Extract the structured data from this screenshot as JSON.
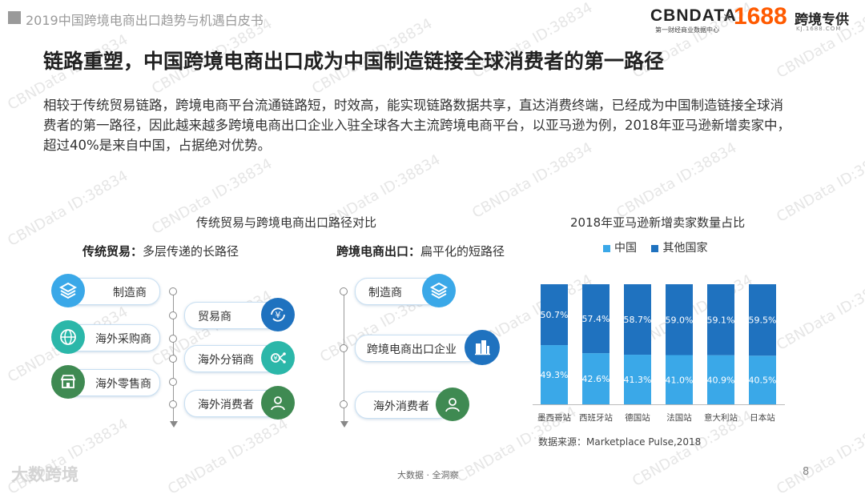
{
  "header": {
    "report_title": "2019中国跨境电商出口趋势与机遇白皮书",
    "logo_cbn": "CBNDATA",
    "logo_cbn_sub": "第一财经商业数据中心",
    "logo_x": "×",
    "logo_1688": "1688",
    "logo_kj": "跨境专供",
    "logo_kj_sub": "KJ.1688.COM"
  },
  "headline": "链路重塑，中国跨境电商出口成为中国制造链接全球消费者的第一路径",
  "body": "相较于传统贸易链路，跨境电商平台流通链路短，时效高，能实现链路数据共享，直达消费终端，已经成为中国制造链接全球消费者的第一路径，因此越来越多跨境电商出口企业入驻全球各大主流跨境电商平台，以亚马逊为例，2018年亚马逊新增卖家中，超过40%是来自中国，占据绝对优势。",
  "diagram": {
    "title": "传统贸易与跨境电商出口路径对比",
    "traditional": {
      "label_bold": "传统贸易：",
      "label_rest": "多层传递的长路径",
      "left_items": [
        "制造商",
        "海外采购商",
        "海外零售商"
      ],
      "right_items": [
        "贸易商",
        "海外分销商",
        "海外消费者"
      ]
    },
    "crossborder": {
      "label_bold": "跨境电商出口：",
      "label_rest": "扁平化的短路径",
      "items": [
        "制造商",
        "跨境电商出口企业",
        "海外消费者"
      ]
    }
  },
  "chart_data": {
    "type": "bar",
    "stacked": true,
    "title": "2018年亚马逊新增卖家数量占比",
    "categories": [
      "墨西哥站",
      "西班牙站",
      "德国站",
      "法国站",
      "意大利站",
      "日本站"
    ],
    "series": [
      {
        "name": "中国",
        "values": [
          49.3,
          42.6,
          41.3,
          41.0,
          40.9,
          40.5
        ],
        "labels": [
          "49.3%",
          "42.6%",
          "41.3%",
          "41.0%",
          "40.9%",
          "40.5%"
        ],
        "color": "#3aa8e8"
      },
      {
        "name": "其他国家",
        "values": [
          50.7,
          57.4,
          58.7,
          59.0,
          59.1,
          59.5
        ],
        "labels": [
          "50.7%",
          "57.4%",
          "58.7%",
          "59.0%",
          "59.1%",
          "59.5%"
        ],
        "color": "#1f72bf"
      }
    ],
    "ylim": [
      0,
      100
    ],
    "legend_position": "top",
    "grid": false
  },
  "source": "数据来源：Marketplace Pulse,2018",
  "footer": {
    "text": "大数据 · 全洞察",
    "page": "8",
    "brand": "大数跨境"
  },
  "watermark": "CBNData ID:38834",
  "colors": {
    "primary": "#1f72bf",
    "light": "#3aa8e8",
    "teal": "#2bb7a9",
    "green": "#3f8a52"
  }
}
